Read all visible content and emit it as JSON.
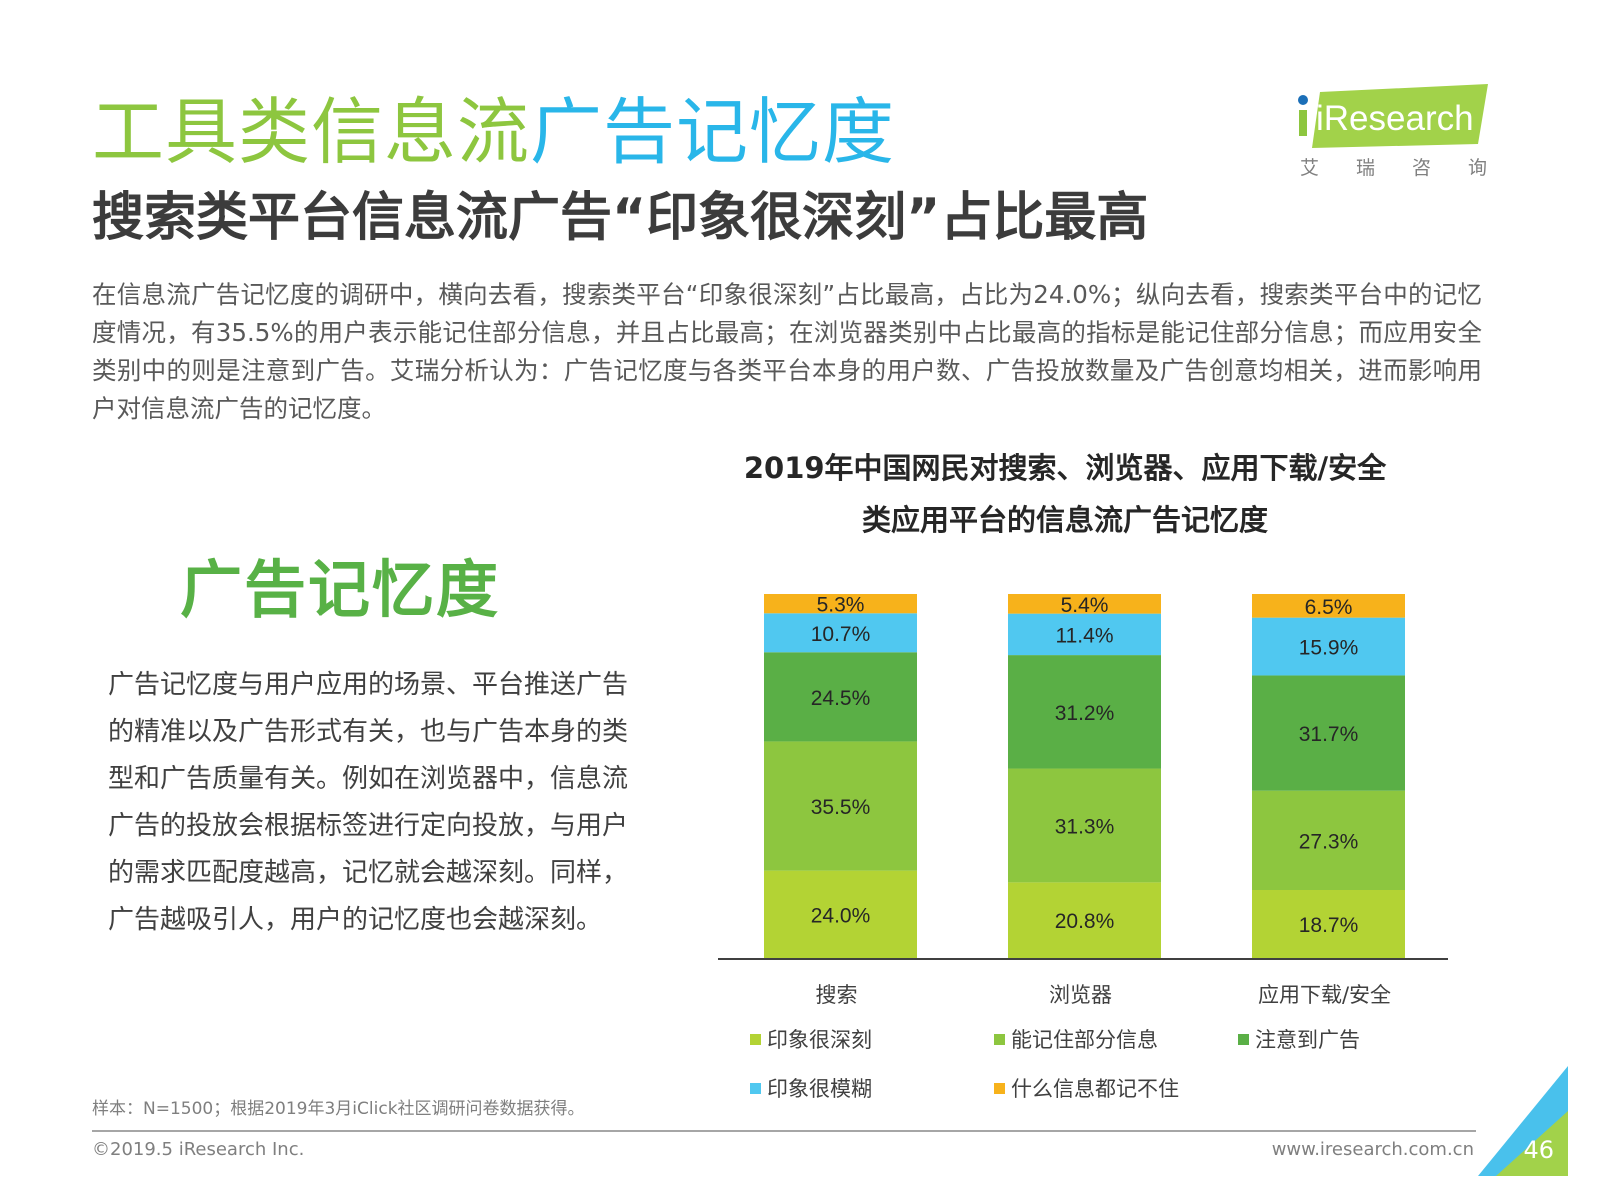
{
  "header": {
    "title_part1": "工具类信息流",
    "title_part2": "广告记忆度",
    "subtitle": "搜索类平台信息流广告“印象很深刻”占比最高",
    "title_colors": {
      "green": "#8dc63f",
      "blue": "#29b6e9"
    }
  },
  "logo": {
    "brand": "iResearch",
    "cn": [
      "艾",
      "瑞",
      "咨",
      "询"
    ]
  },
  "intro_text": "在信息流广告记忆度的调研中，横向去看，搜索类平台“印象很深刻”占比最高，占比为24.0%；纵向去看，搜索类平台中的记忆度情况，有35.5%的用户表示能记住部分信息，并且占比最高；在浏览器类别中占比最高的指标是能记住部分信息；而应用安全类别中的则是注意到广告。艾瑞分析认为：广告记忆度与各类平台本身的用户数、广告投放数量及广告创意均相关，进而影响用户对信息流广告的记忆度。",
  "side": {
    "heading": "广告记忆度",
    "text": "广告记忆度与用户应用的场景、平台推送广告的精准以及广告形式有关，也与广告本身的类型和广告质量有关。例如在浏览器中，信息流广告的投放会根据标签进行定向投放，与用户的需求匹配度越高，记忆就会越深刻。同样，广告越吸引人，用户的记忆度也会越深刻。"
  },
  "chart_data": {
    "type": "bar",
    "stacked": true,
    "title_line1": "2019年中国网民对搜索、浏览器、应用下载/安全",
    "title_line2": "类应用平台的信息流广告记忆度",
    "categories": [
      "搜索",
      "浏览器",
      "应用下载/安全"
    ],
    "series": [
      {
        "name": "印象很深刻",
        "color": "#b3d334",
        "values": [
          24.0,
          20.8,
          18.7
        ]
      },
      {
        "name": "能记住部分信息",
        "color": "#8dc63f",
        "values": [
          35.5,
          31.3,
          27.3
        ]
      },
      {
        "name": "注意到广告",
        "color": "#5aaf46",
        "values": [
          24.5,
          31.2,
          31.7
        ]
      },
      {
        "name": "印象很模糊",
        "color": "#50c8f0",
        "values": [
          10.7,
          11.4,
          15.9
        ]
      },
      {
        "name": "什么信息都记不住",
        "color": "#f7b21b",
        "values": [
          5.3,
          5.4,
          6.5
        ]
      }
    ],
    "value_suffix": "%",
    "ylim": [
      0,
      100
    ],
    "legend_position": "bottom"
  },
  "note": "样本：N=1500；根据2019年3月iClick社区调研问卷数据获得。",
  "footer": {
    "copyright": "©2019.5 iResearch Inc.",
    "url": "www.iresearch.com.cn",
    "page_number": "46"
  }
}
